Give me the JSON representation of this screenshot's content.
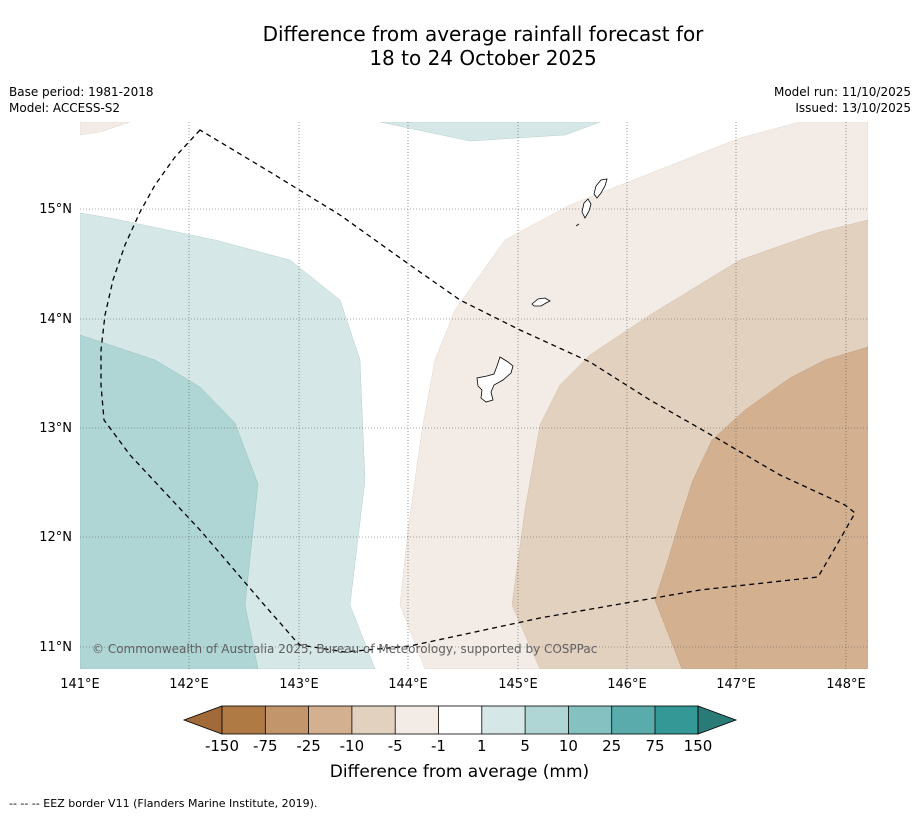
{
  "title": {
    "line1": "Difference from average rainfall forecast for",
    "line2": "18 to 24 October 2025"
  },
  "meta_left": {
    "base_period": "Base period: 1981-2018",
    "model": "Model: ACCESS-S2"
  },
  "meta_right": {
    "model_run": "Model run: 11/10/2025",
    "issued": "Issued: 13/10/2025"
  },
  "map": {
    "lon_labels": [
      "141°E",
      "142°E",
      "143°E",
      "144°E",
      "145°E",
      "146°E",
      "147°E",
      "148°E"
    ],
    "lat_labels": [
      "15°N",
      "14°N",
      "13°N",
      "12°N",
      "11°N"
    ],
    "lon_range": [
      141,
      148.2
    ],
    "lat_range": [
      10.8,
      15.8
    ],
    "copyright": "© Commonwealth of Australia 2025, Bureau of Meteorology, supported by COSPPac"
  },
  "colorbar": {
    "ticks": [
      "-150",
      "-75",
      "-25",
      "-10",
      "-5",
      "-1",
      "1",
      "5",
      "10",
      "25",
      "75",
      "150"
    ],
    "colors": [
      "#a16a38",
      "#b07a45",
      "#c2956b",
      "#d3b090",
      "#e3d1c0",
      "#f3ece6",
      "#ffffff",
      "#d5e8e7",
      "#afd5d4",
      "#86c1c1",
      "#5aabab",
      "#349996",
      "#2a7a78"
    ],
    "label": "Difference from average (mm)"
  },
  "palette": {
    "teal_light": "#d5e8e7",
    "teal_mid": "#afd5d4",
    "brown_lightest": "#f3ece6",
    "brown_light": "#e3d1c0",
    "brown_mid": "#d3b090"
  },
  "footnote": "--  --  -- EEZ border V11 (Flanders Marine Institute, 2019)."
}
